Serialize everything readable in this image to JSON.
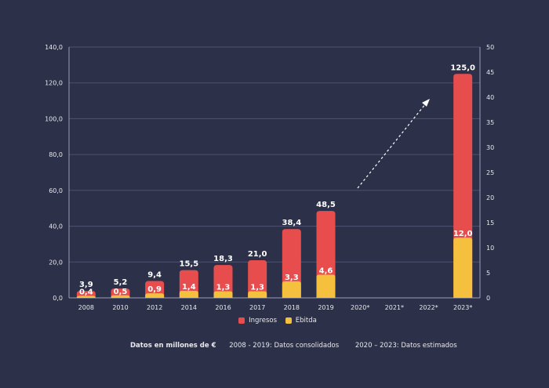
{
  "chart_data": {
    "type": "bar",
    "categories": [
      "2008",
      "2010",
      "2012",
      "2014",
      "2016",
      "2017",
      "2018",
      "2019",
      "2020*",
      "2021*",
      "2022*",
      "2023*"
    ],
    "series": [
      {
        "name": "Ingresos",
        "axis": "left",
        "color": "#e84d4d",
        "values": [
          3.9,
          5.2,
          9.4,
          15.5,
          18.3,
          21.0,
          38.4,
          48.5,
          null,
          null,
          null,
          125.0
        ],
        "labels": [
          "3,9",
          "5,2",
          "9,4",
          "15,5",
          "18,3",
          "21,0",
          "38,4",
          "48,5",
          "",
          "",
          "",
          "125,0"
        ]
      },
      {
        "name": "Ebitda",
        "axis": "right",
        "color": "#f5c03e",
        "values": [
          0.4,
          0.5,
          0.9,
          1.4,
          1.3,
          1.3,
          3.3,
          4.6,
          null,
          null,
          null,
          12.0
        ],
        "labels": [
          "0,4",
          "0,5",
          "0,9",
          "1,4",
          "1,3",
          "1,3",
          "3,3",
          "4,6",
          "",
          "",
          "",
          "12,0"
        ]
      }
    ],
    "y_left": {
      "range": [
        0,
        140
      ],
      "ticks": [
        "0,0",
        "20,0",
        "40,0",
        "60,0",
        "80,0",
        "100,0",
        "120,0",
        "140,0"
      ]
    },
    "y_right": {
      "range": [
        0,
        50
      ],
      "ticks": [
        "0",
        "5",
        "10",
        "15",
        "20",
        "25",
        "30",
        "35",
        "40",
        "45",
        "50"
      ]
    },
    "grid": true,
    "legend": "bottom",
    "annotation": "dashed arrow indicating growth from 2020 to 2023"
  },
  "footer": {
    "units": "Datos en millones de €",
    "consolidated": "2008 - 2019: Datos consolidados",
    "estimated": "2020 – 2023: Datos estimados"
  }
}
